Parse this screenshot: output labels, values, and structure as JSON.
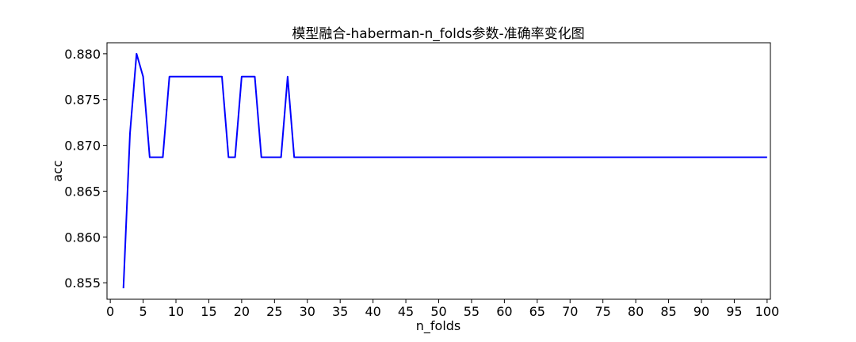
{
  "chart_data": {
    "type": "line",
    "title": "模型融合-haberman-n_folds参数-准确率变化图",
    "xlabel": "n_folds",
    "ylabel": "acc",
    "xlim": [
      -0.5,
      100.5
    ],
    "ylim": [
      0.8532,
      0.8812
    ],
    "xticks": [
      0,
      5,
      10,
      15,
      20,
      25,
      30,
      35,
      40,
      45,
      50,
      55,
      60,
      65,
      70,
      75,
      80,
      85,
      90,
      95,
      100
    ],
    "yticks": [
      0.855,
      0.86,
      0.865,
      0.87,
      0.875,
      0.88
    ],
    "ytick_labels": [
      "0.855",
      "0.860",
      "0.865",
      "0.870",
      "0.875",
      "0.880"
    ],
    "grid": false,
    "line_color": "#0000ff",
    "series": [
      {
        "x": [
          2,
          3,
          4,
          5,
          6,
          7,
          8,
          9,
          10,
          11,
          12,
          13,
          14,
          15,
          16,
          17,
          18,
          19,
          20,
          21,
          22,
          23,
          24,
          25,
          26,
          27,
          28,
          29,
          30,
          31,
          32,
          33,
          34,
          35,
          36,
          37,
          38,
          39,
          40,
          41,
          42,
          43,
          44,
          45,
          46,
          47,
          48,
          49,
          50,
          51,
          52,
          53,
          54,
          55,
          56,
          57,
          58,
          59,
          60,
          61,
          62,
          63,
          64,
          65,
          66,
          67,
          68,
          69,
          70,
          71,
          72,
          73,
          74,
          75,
          76,
          77,
          78,
          79,
          80,
          81,
          82,
          83,
          84,
          85,
          86,
          87,
          88,
          89,
          90,
          91,
          92,
          93,
          94,
          95,
          96,
          97,
          98,
          99,
          100
        ],
        "values": [
          0.8544,
          0.8713,
          0.88,
          0.8775,
          0.8687,
          0.8687,
          0.8687,
          0.8775,
          0.8775,
          0.8775,
          0.8775,
          0.8775,
          0.8775,
          0.8775,
          0.8775,
          0.8775,
          0.8687,
          0.8687,
          0.8775,
          0.8775,
          0.8775,
          0.8687,
          0.8687,
          0.8687,
          0.8687,
          0.8775,
          0.8687,
          0.8687,
          0.8687,
          0.8687,
          0.8687,
          0.8687,
          0.8687,
          0.8687,
          0.8687,
          0.8687,
          0.8687,
          0.8687,
          0.8687,
          0.8687,
          0.8687,
          0.8687,
          0.8687,
          0.8687,
          0.8687,
          0.8687,
          0.8687,
          0.8687,
          0.8687,
          0.8687,
          0.8687,
          0.8687,
          0.8687,
          0.8687,
          0.8687,
          0.8687,
          0.8687,
          0.8687,
          0.8687,
          0.8687,
          0.8687,
          0.8687,
          0.8687,
          0.8687,
          0.8687,
          0.8687,
          0.8687,
          0.8687,
          0.8687,
          0.8687,
          0.8687,
          0.8687,
          0.8687,
          0.8687,
          0.8687,
          0.8687,
          0.8687,
          0.8687,
          0.8687,
          0.8687,
          0.8687,
          0.8687,
          0.8687,
          0.8687,
          0.8687,
          0.8687,
          0.8687,
          0.8687,
          0.8687,
          0.8687,
          0.8687,
          0.8687,
          0.8687,
          0.8687,
          0.8687,
          0.8687,
          0.8687,
          0.8687,
          0.8687
        ]
      }
    ]
  }
}
